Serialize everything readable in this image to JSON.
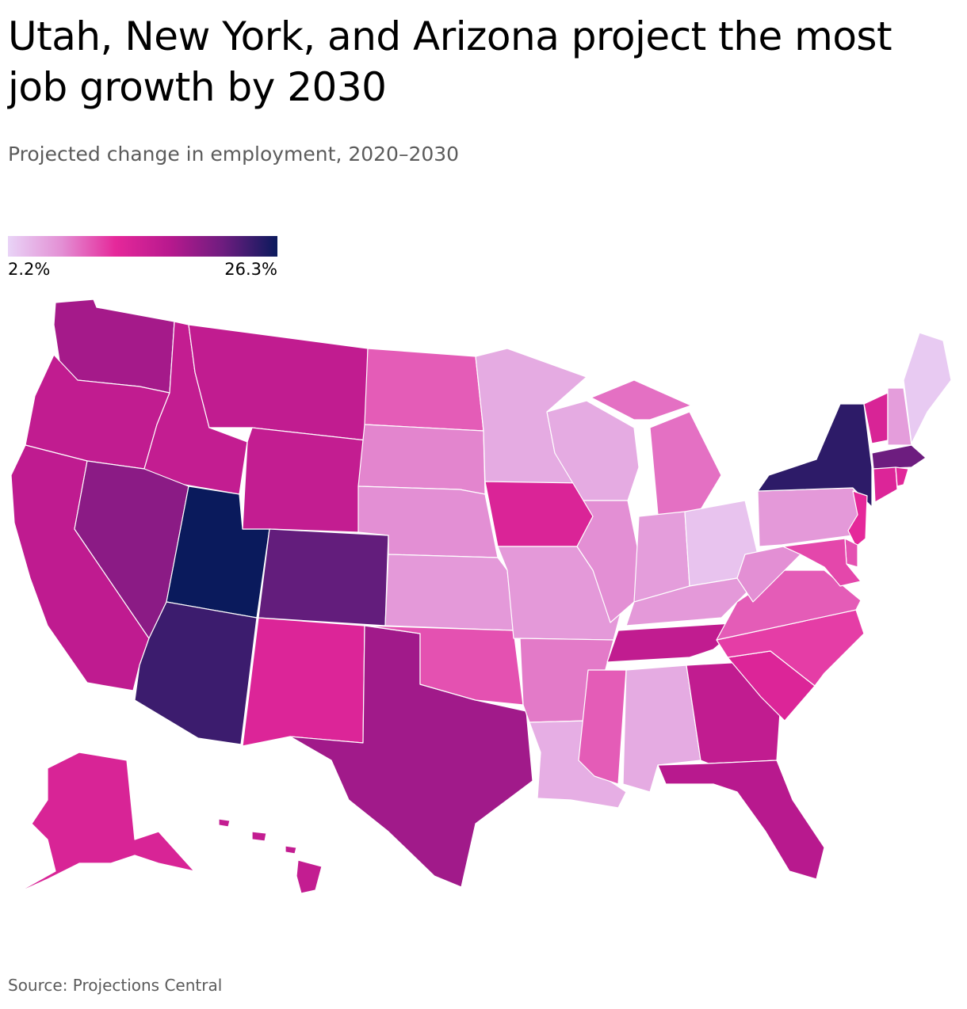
{
  "title": "Utah, New York, and Arizona project the most job growth by 2030",
  "subtitle": "Projected change in employment, 2020–2030",
  "source": "Source: Projections Central",
  "legend": {
    "min_label": "2.2%",
    "max_label": "26.3%",
    "min_value": 2.2,
    "max_value": 26.3,
    "color_stops": [
      "#e9d4f7",
      "#e38fd4",
      "#e5289a",
      "#b8198e",
      "#6d1d7f",
      "#0a1a5c"
    ]
  },
  "states": [
    {
      "id": "WA",
      "level": 0.65
    },
    {
      "id": "OR",
      "level": 0.56
    },
    {
      "id": "CA",
      "level": 0.57
    },
    {
      "id": "ID",
      "level": 0.55
    },
    {
      "id": "NV",
      "level": 0.72
    },
    {
      "id": "UT",
      "level": 1.0
    },
    {
      "id": "AZ",
      "level": 0.9
    },
    {
      "id": "MT",
      "level": 0.56
    },
    {
      "id": "WY",
      "level": 0.55
    },
    {
      "id": "CO",
      "level": 0.82
    },
    {
      "id": "NM",
      "level": 0.44
    },
    {
      "id": "TX",
      "level": 0.66
    },
    {
      "id": "ND",
      "level": 0.3
    },
    {
      "id": "SD",
      "level": 0.22
    },
    {
      "id": "NE",
      "level": 0.2
    },
    {
      "id": "KS",
      "level": 0.17
    },
    {
      "id": "OK",
      "level": 0.32
    },
    {
      "id": "MN",
      "level": 0.12
    },
    {
      "id": "IA",
      "level": 0.45
    },
    {
      "id": "MO",
      "level": 0.17
    },
    {
      "id": "AR",
      "level": 0.24
    },
    {
      "id": "LA",
      "level": 0.11
    },
    {
      "id": "WI",
      "level": 0.12
    },
    {
      "id": "IL",
      "level": 0.2
    },
    {
      "id": "MI",
      "level": 0.26
    },
    {
      "id": "IN",
      "level": 0.16
    },
    {
      "id": "OH",
      "level": 0.05
    },
    {
      "id": "KY",
      "level": 0.17
    },
    {
      "id": "TN",
      "level": 0.56
    },
    {
      "id": "MS",
      "level": 0.3
    },
    {
      "id": "AL",
      "level": 0.12
    },
    {
      "id": "GA",
      "level": 0.56
    },
    {
      "id": "FL",
      "level": 0.6
    },
    {
      "id": "SC",
      "level": 0.44
    },
    {
      "id": "NC",
      "level": 0.36
    },
    {
      "id": "VA",
      "level": 0.3
    },
    {
      "id": "WV",
      "level": 0.2
    },
    {
      "id": "PA",
      "level": 0.17
    },
    {
      "id": "NY",
      "level": 0.93
    },
    {
      "id": "VT",
      "level": 0.46
    },
    {
      "id": "NH",
      "level": 0.16
    },
    {
      "id": "ME",
      "level": 0.03
    },
    {
      "id": "MA",
      "level": 0.8
    },
    {
      "id": "CT",
      "level": 0.44
    },
    {
      "id": "RI",
      "level": 0.42
    },
    {
      "id": "NJ",
      "level": 0.4
    },
    {
      "id": "DE",
      "level": 0.32
    },
    {
      "id": "MD",
      "level": 0.34
    },
    {
      "id": "AK",
      "level": 0.46
    },
    {
      "id": "HI",
      "level": 0.55
    }
  ]
}
